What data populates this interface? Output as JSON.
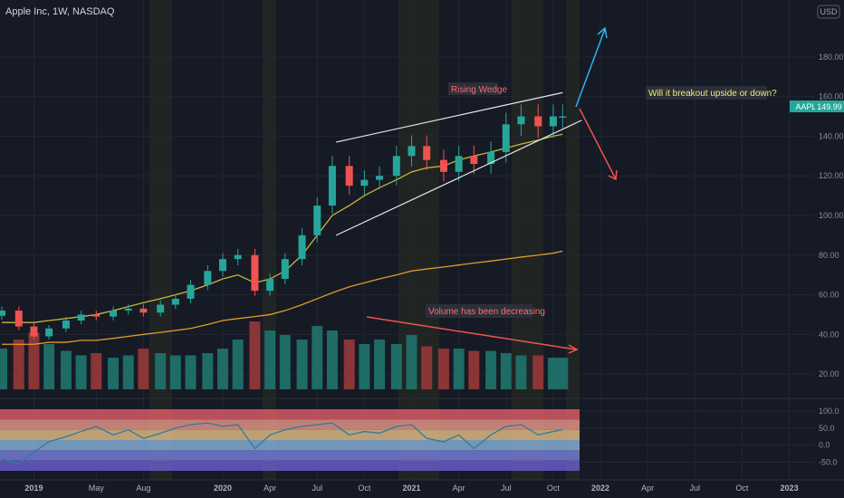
{
  "header": {
    "symbol_title": "Apple Inc, 1W, NASDAQ",
    "currency": "USD"
  },
  "colors": {
    "background": "#161a25",
    "grid": "#222633",
    "up_candle": "#26a69a",
    "down_candle": "#ef5350",
    "up_volume": "#1f6b65",
    "down_volume": "#8a3536",
    "sma_yellow": "#c8b63a",
    "sma_orange": "#e09a2a",
    "ema_red_dotted": "#e05a5a",
    "ema_green_dotted": "#4caf50",
    "highlight_band": "#2a2f22",
    "price_label_bg": "#26a69a",
    "note_text_yellow": "#f2e86d",
    "note_text_red": "#ff6b6b",
    "arrow_up": "#29b6f6",
    "arrow_down": "#ef5350"
  },
  "annotations": {
    "rising_wedge": "Rising Wedge",
    "breakout_question": "Will it breakout upside or down?",
    "volume_note": "Volume has been decreasing"
  },
  "price_label": {
    "ticker": "AAPL",
    "value": "149.99"
  },
  "chart_data": [
    {
      "type": "line",
      "name": "price",
      "y_axis_ticks": [
        "180.00",
        "160.00",
        "140.00",
        "120.00",
        "100.00",
        "80.00",
        "60.00",
        "40.00",
        "20.00"
      ],
      "x_axis_ticks": [
        "2019",
        "May",
        "Aug",
        "2020",
        "Apr",
        "Jul",
        "Oct",
        "2021",
        "Apr",
        "Jul",
        "Oct",
        "2022",
        "Apr",
        "Jul",
        "Oct",
        "2023"
      ],
      "ylim": [
        10,
        195
      ],
      "candles": {
        "x": [
          2018.83,
          2018.92,
          2019.0,
          2019.08,
          2019.17,
          2019.25,
          2019.33,
          2019.42,
          2019.5,
          2019.58,
          2019.67,
          2019.75,
          2019.83,
          2019.92,
          2020.0,
          2020.08,
          2020.17,
          2020.25,
          2020.33,
          2020.42,
          2020.5,
          2020.58,
          2020.67,
          2020.75,
          2020.83,
          2020.92,
          2021.0,
          2021.08,
          2021.17,
          2021.25,
          2021.33,
          2021.42,
          2021.5,
          2021.58,
          2021.67,
          2021.75,
          2021.8
        ],
        "close": [
          52,
          44,
          39,
          43,
          47,
          50,
          49,
          52,
          53,
          51,
          55,
          58,
          65,
          72,
          78,
          80,
          62,
          68,
          78,
          90,
          105,
          125,
          115,
          118,
          120,
          130,
          135,
          128,
          122,
          130,
          126,
          132,
          146,
          150,
          145,
          150,
          150
        ]
      },
      "series": [
        {
          "name": "SMA yellow",
          "values": [
            46,
            46,
            46,
            47,
            48,
            49,
            50,
            52,
            54,
            56,
            58,
            60,
            62,
            65,
            68,
            70,
            66,
            68,
            72,
            80,
            90,
            100,
            105,
            110,
            114,
            118,
            122,
            124,
            125,
            128,
            130,
            132,
            134,
            136,
            138,
            140,
            141
          ]
        },
        {
          "name": "SMA orange",
          "values": [
            35,
            35,
            35,
            36,
            36,
            37,
            37,
            38,
            39,
            40,
            41,
            42,
            43,
            45,
            47,
            48,
            49,
            50,
            52,
            55,
            58,
            61,
            64,
            66,
            68,
            70,
            72,
            73,
            74,
            75,
            76,
            77,
            78,
            79,
            80,
            81,
            82
          ]
        }
      ],
      "wedge_upper": [
        [
          2020.6,
          137
        ],
        [
          2021.8,
          162
        ]
      ],
      "wedge_lower": [
        [
          2020.6,
          90
        ],
        [
          2021.9,
          148
        ]
      ]
    },
    {
      "type": "bar",
      "name": "volume",
      "values": [
        18,
        22,
        25,
        20,
        17,
        15,
        16,
        14,
        15,
        18,
        16,
        15,
        15,
        16,
        18,
        22,
        30,
        26,
        24,
        22,
        28,
        26,
        22,
        20,
        22,
        20,
        24,
        19,
        18,
        18,
        17,
        17,
        16,
        15,
        15,
        14,
        14
      ]
    },
    {
      "type": "line",
      "name": "RSI",
      "y_axis_ticks": [
        "100.0",
        "50.0",
        "0.0",
        "-50.0"
      ],
      "ylim": [
        -75,
        105
      ],
      "values": [
        -40,
        -55,
        -20,
        10,
        25,
        40,
        55,
        30,
        45,
        20,
        35,
        50,
        60,
        65,
        55,
        60,
        -10,
        30,
        45,
        55,
        60,
        65,
        30,
        40,
        35,
        55,
        60,
        20,
        10,
        30,
        -10,
        30,
        55,
        60,
        30,
        40,
        45
      ]
    }
  ]
}
